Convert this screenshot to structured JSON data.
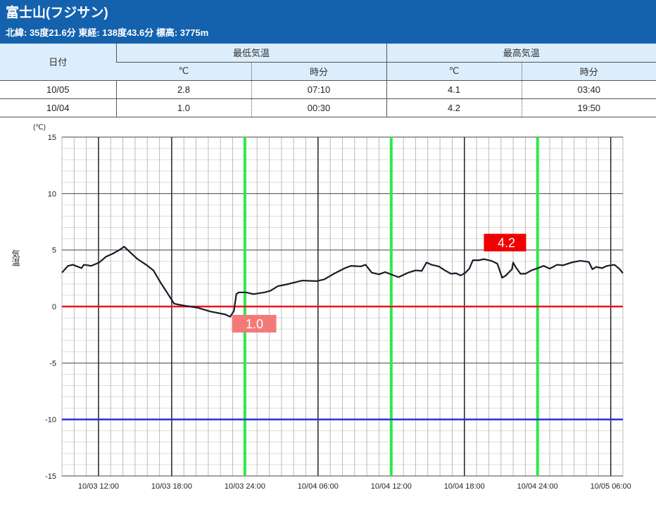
{
  "header": {
    "title": "富士山(フジサン)",
    "subtitle": "北緯: 35度21.6分 東経: 138度43.6分 標高: 3775m"
  },
  "table": {
    "date_header": "日付",
    "min_header": "最低気温",
    "max_header": "最高気温",
    "sub_headers": [
      "℃",
      "時分",
      "℃",
      "時分"
    ],
    "rows": [
      {
        "date": "10/05",
        "min": "2.8",
        "min_time": "07:10",
        "max": "4.1",
        "max_time": "03:40"
      },
      {
        "date": "10/04",
        "min": "1.0",
        "min_time": "00:30",
        "max": "4.2",
        "max_time": "19:50"
      }
    ]
  },
  "chart_data": {
    "type": "line",
    "ylabel": "気温",
    "yunit": "(℃)",
    "ylim": [
      -15,
      15
    ],
    "yticks": [
      "15",
      "10",
      "5",
      "0",
      "-5",
      "-10",
      "-15"
    ],
    "x_start": "10/03 09:00",
    "x_unit": "hours since start",
    "xlim": [
      0,
      46
    ],
    "xticks": [
      {
        "h": 3,
        "label": "10/03 12:00"
      },
      {
        "h": 9,
        "label": "10/03 18:00"
      },
      {
        "h": 15,
        "label": "10/03 24:00"
      },
      {
        "h": 21,
        "label": "10/04 06:00"
      },
      {
        "h": 27,
        "label": "10/04 12:00"
      },
      {
        "h": 33,
        "label": "10/04 18:00"
      },
      {
        "h": 39,
        "label": "10/04 24:00"
      },
      {
        "h": 45,
        "label": "10/05 06:00"
      }
    ],
    "green_lines_h": [
      15,
      27,
      39
    ],
    "ref_lines": [
      {
        "value": 0,
        "color": "#e8141b"
      },
      {
        "value": -10,
        "color": "#2433d6"
      }
    ],
    "series": [
      {
        "name": "気温",
        "color": "#1a1a2a",
        "points": [
          [
            0,
            3.0
          ],
          [
            0.5,
            3.6
          ],
          [
            0.9,
            3.7
          ],
          [
            1.6,
            3.4
          ],
          [
            1.8,
            3.7
          ],
          [
            2.4,
            3.6
          ],
          [
            3.06,
            3.9
          ],
          [
            3.6,
            4.4
          ],
          [
            4.2,
            4.7
          ],
          [
            4.7,
            5.0
          ],
          [
            5.1,
            5.3
          ],
          [
            5.5,
            4.9
          ],
          [
            6.2,
            4.2
          ],
          [
            6.9,
            3.7
          ],
          [
            7.5,
            3.2
          ],
          [
            8.1,
            2.1
          ],
          [
            8.7,
            1.1
          ],
          [
            9.2,
            0.25
          ],
          [
            9.9,
            0.1
          ],
          [
            11.1,
            -0.1
          ],
          [
            12.2,
            -0.45
          ],
          [
            13.4,
            -0.7
          ],
          [
            13.8,
            -0.9
          ],
          [
            14.1,
            -0.4
          ],
          [
            14.3,
            1.1
          ],
          [
            14.5,
            1.25
          ],
          [
            15.1,
            1.25
          ],
          [
            15.7,
            1.1
          ],
          [
            16.6,
            1.25
          ],
          [
            17.1,
            1.4
          ],
          [
            17.7,
            1.8
          ],
          [
            18.6,
            2.0
          ],
          [
            19.7,
            2.3
          ],
          [
            20.9,
            2.25
          ],
          [
            21.5,
            2.4
          ],
          [
            22.3,
            2.9
          ],
          [
            23.2,
            3.4
          ],
          [
            23.7,
            3.6
          ],
          [
            24.5,
            3.55
          ],
          [
            24.9,
            3.7
          ],
          [
            25.4,
            3.0
          ],
          [
            26.0,
            2.85
          ],
          [
            26.5,
            3.05
          ],
          [
            27.1,
            2.8
          ],
          [
            27.6,
            2.6
          ],
          [
            28.4,
            3.0
          ],
          [
            29.0,
            3.2
          ],
          [
            29.5,
            3.15
          ],
          [
            29.9,
            3.9
          ],
          [
            30.3,
            3.7
          ],
          [
            30.9,
            3.55
          ],
          [
            31.4,
            3.2
          ],
          [
            31.9,
            2.9
          ],
          [
            32.3,
            2.95
          ],
          [
            32.7,
            2.75
          ],
          [
            33.1,
            3.0
          ],
          [
            33.4,
            3.35
          ],
          [
            33.7,
            4.1
          ],
          [
            34.2,
            4.1
          ],
          [
            34.6,
            4.2
          ],
          [
            35.2,
            4.05
          ],
          [
            35.7,
            3.8
          ],
          [
            36.1,
            2.55
          ],
          [
            36.4,
            2.75
          ],
          [
            36.9,
            3.3
          ],
          [
            37.0,
            3.9
          ],
          [
            37.2,
            3.5
          ],
          [
            37.6,
            2.9
          ],
          [
            38.0,
            2.9
          ],
          [
            38.5,
            3.2
          ],
          [
            38.9,
            3.35
          ],
          [
            39.5,
            3.6
          ],
          [
            40.0,
            3.35
          ],
          [
            40.6,
            3.7
          ],
          [
            41.1,
            3.65
          ],
          [
            41.8,
            3.9
          ],
          [
            42.5,
            4.05
          ],
          [
            43.2,
            3.95
          ],
          [
            43.5,
            3.3
          ],
          [
            43.8,
            3.5
          ],
          [
            44.3,
            3.4
          ],
          [
            44.7,
            3.6
          ],
          [
            45.3,
            3.7
          ],
          [
            45.7,
            3.35
          ],
          [
            46.0,
            2.95
          ]
        ]
      }
    ],
    "annotations": [
      {
        "label": "1.0",
        "h": 15.5,
        "value": 1.0,
        "kind": "min",
        "color": "#f47a7a"
      },
      {
        "label": "4.2",
        "h": 34.83,
        "value": 4.2,
        "kind": "max",
        "color": "#f00000"
      }
    ]
  }
}
